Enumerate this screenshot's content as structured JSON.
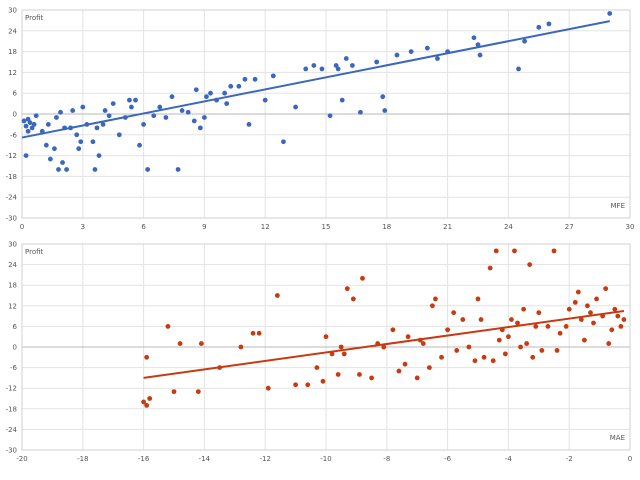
{
  "colors": {
    "mfe": "#3b67bd",
    "mae": "#c73a12"
  },
  "chart_data": [
    {
      "type": "scatter",
      "ylabel": "Profit",
      "xlabel": "MFE",
      "xlim": [
        0,
        30
      ],
      "ylim": [
        -30,
        30
      ],
      "xticks": [
        "0",
        "3",
        "6",
        "9",
        "12",
        "15",
        "18",
        "21",
        "24",
        "27",
        "30"
      ],
      "yticks": [
        "30",
        "24",
        "18",
        "12",
        "6",
        "0",
        "-6",
        "-12",
        "-18",
        "-24",
        "-30"
      ],
      "grid": true,
      "trendline": {
        "x": [
          0,
          29
        ],
        "y": [
          -6.8,
          26.8
        ]
      },
      "points": [
        [
          0.1,
          -2
        ],
        [
          0.2,
          -3.5
        ],
        [
          0.3,
          -5
        ],
        [
          0.4,
          -2.5
        ],
        [
          0.5,
          -4
        ],
        [
          0.3,
          -1.5
        ],
        [
          0.6,
          -3
        ],
        [
          0.2,
          -12
        ],
        [
          0.7,
          -0.5
        ],
        [
          1,
          -5
        ],
        [
          1.2,
          -9
        ],
        [
          1.4,
          -13
        ],
        [
          1.6,
          -10
        ],
        [
          1.8,
          -16
        ],
        [
          2,
          -14
        ],
        [
          1.3,
          -3
        ],
        [
          1.7,
          -1
        ],
        [
          1.9,
          0.5
        ],
        [
          2.1,
          -4
        ],
        [
          2.4,
          -4
        ],
        [
          2.7,
          -6
        ],
        [
          2.2,
          -16
        ],
        [
          2.5,
          1
        ],
        [
          2.9,
          -8
        ],
        [
          3,
          2
        ],
        [
          3.2,
          -3
        ],
        [
          2.8,
          -10
        ],
        [
          3.5,
          -8
        ],
        [
          3.7,
          -4
        ],
        [
          3.8,
          -12
        ],
        [
          3.6,
          -16
        ],
        [
          4.1,
          1
        ],
        [
          4.3,
          -0.5
        ],
        [
          4.5,
          3
        ],
        [
          4,
          -3
        ],
        [
          4.8,
          -6
        ],
        [
          5.1,
          -1
        ],
        [
          5.3,
          4
        ],
        [
          5.6,
          4
        ],
        [
          5.4,
          2
        ],
        [
          6,
          -3
        ],
        [
          6.2,
          -16
        ],
        [
          5.8,
          -9
        ],
        [
          6.5,
          -0.5
        ],
        [
          6.8,
          2
        ],
        [
          7.1,
          -1
        ],
        [
          7.4,
          5
        ],
        [
          7.7,
          -16
        ],
        [
          7.9,
          1
        ],
        [
          8.2,
          0.5
        ],
        [
          8.5,
          -2
        ],
        [
          8.8,
          -4
        ],
        [
          9.1,
          5
        ],
        [
          9.3,
          6
        ],
        [
          8.6,
          7
        ],
        [
          9,
          -1
        ],
        [
          9.6,
          4
        ],
        [
          10,
          6
        ],
        [
          10.3,
          8
        ],
        [
          10.1,
          3
        ],
        [
          10.7,
          8
        ],
        [
          11,
          10
        ],
        [
          11.2,
          -3
        ],
        [
          11.5,
          10
        ],
        [
          12,
          4
        ],
        [
          12.4,
          11
        ],
        [
          12.9,
          -8
        ],
        [
          13.5,
          2
        ],
        [
          14,
          13
        ],
        [
          14.4,
          14
        ],
        [
          14.8,
          13
        ],
        [
          15.2,
          -0.5
        ],
        [
          15.5,
          14
        ],
        [
          15.6,
          13
        ],
        [
          15.8,
          4
        ],
        [
          16,
          16
        ],
        [
          16.3,
          14
        ],
        [
          16.7,
          0.5
        ],
        [
          17.5,
          15
        ],
        [
          17.8,
          5
        ],
        [
          17.9,
          1
        ],
        [
          18.5,
          17
        ],
        [
          19.2,
          18
        ],
        [
          20,
          19
        ],
        [
          20.5,
          16
        ],
        [
          21,
          18
        ],
        [
          22.5,
          20
        ],
        [
          22.3,
          22
        ],
        [
          22.6,
          17
        ],
        [
          24.5,
          13
        ],
        [
          24.8,
          21
        ],
        [
          25.5,
          25
        ],
        [
          26,
          26
        ],
        [
          29,
          29
        ]
      ]
    },
    {
      "type": "scatter",
      "ylabel": "Profit",
      "xlabel": "MAE",
      "xlim": [
        -20,
        0
      ],
      "ylim": [
        -30,
        30
      ],
      "xticks": [
        "-20",
        "-18",
        "-16",
        "-14",
        "-12",
        "-10",
        "-8",
        "-6",
        "-4",
        "-2",
        "0"
      ],
      "yticks": [
        "30",
        "24",
        "18",
        "12",
        "6",
        "0",
        "-6",
        "-12",
        "-18",
        "-24",
        "-30"
      ],
      "grid": true,
      "trendline": {
        "x": [
          -16,
          -0.2
        ],
        "y": [
          -9,
          10.5
        ]
      },
      "points": [
        [
          -16,
          -16
        ],
        [
          -15.9,
          -17
        ],
        [
          -15.8,
          -15
        ],
        [
          -15.9,
          -3
        ],
        [
          -15.2,
          6
        ],
        [
          -15,
          -13
        ],
        [
          -14.8,
          1
        ],
        [
          -14.2,
          -13
        ],
        [
          -14.1,
          1
        ],
        [
          -13.5,
          -6
        ],
        [
          -12.8,
          0
        ],
        [
          -12.4,
          4
        ],
        [
          -12.2,
          4
        ],
        [
          -11.9,
          -12
        ],
        [
          -11.6,
          15
        ],
        [
          -11,
          -11
        ],
        [
          -10.6,
          -11
        ],
        [
          -10.3,
          -6
        ],
        [
          -10.1,
          -10
        ],
        [
          -10,
          3
        ],
        [
          -9.8,
          -2
        ],
        [
          -9.6,
          -8
        ],
        [
          -9.5,
          0
        ],
        [
          -9.4,
          -2
        ],
        [
          -9.3,
          17
        ],
        [
          -9.1,
          14
        ],
        [
          -8.9,
          -8
        ],
        [
          -8.8,
          20
        ],
        [
          -8.5,
          -9
        ],
        [
          -8.3,
          1
        ],
        [
          -8.1,
          0
        ],
        [
          -7.8,
          5
        ],
        [
          -7.6,
          -7
        ],
        [
          -7.4,
          -5
        ],
        [
          -7.3,
          3
        ],
        [
          -7,
          -9
        ],
        [
          -6.9,
          2
        ],
        [
          -6.8,
          1
        ],
        [
          -6.6,
          -6
        ],
        [
          -6.5,
          12
        ],
        [
          -6.4,
          14
        ],
        [
          -6.2,
          -3
        ],
        [
          -6,
          5
        ],
        [
          -5.8,
          10
        ],
        [
          -5.7,
          -1
        ],
        [
          -5.5,
          8
        ],
        [
          -5.3,
          0
        ],
        [
          -5.1,
          -4
        ],
        [
          -5,
          14
        ],
        [
          -4.9,
          8
        ],
        [
          -4.8,
          -3
        ],
        [
          -4.6,
          23
        ],
        [
          -4.5,
          -4
        ],
        [
          -4.4,
          28
        ],
        [
          -4.3,
          2
        ],
        [
          -4.2,
          5
        ],
        [
          -4.1,
          -2
        ],
        [
          -4,
          3
        ],
        [
          -3.9,
          8
        ],
        [
          -3.8,
          28
        ],
        [
          -3.7,
          7
        ],
        [
          -3.6,
          0
        ],
        [
          -3.5,
          11
        ],
        [
          -3.4,
          1
        ],
        [
          -3.3,
          24
        ],
        [
          -3.2,
          -3
        ],
        [
          -3.1,
          6
        ],
        [
          -3,
          10
        ],
        [
          -2.9,
          -1
        ],
        [
          -2.7,
          6
        ],
        [
          -2.5,
          28
        ],
        [
          -2.4,
          -1
        ],
        [
          -2.3,
          4
        ],
        [
          -2.1,
          6
        ],
        [
          -2,
          11
        ],
        [
          -1.8,
          13
        ],
        [
          -1.7,
          16
        ],
        [
          -1.6,
          8
        ],
        [
          -1.5,
          2
        ],
        [
          -1.4,
          12
        ],
        [
          -1.3,
          10
        ],
        [
          -1.2,
          7
        ],
        [
          -1.1,
          14
        ],
        [
          -0.9,
          9
        ],
        [
          -0.8,
          17
        ],
        [
          -0.7,
          1
        ],
        [
          -0.6,
          5
        ],
        [
          -0.5,
          11
        ],
        [
          -0.4,
          9
        ],
        [
          -0.3,
          6
        ],
        [
          -0.2,
          8
        ]
      ]
    }
  ]
}
